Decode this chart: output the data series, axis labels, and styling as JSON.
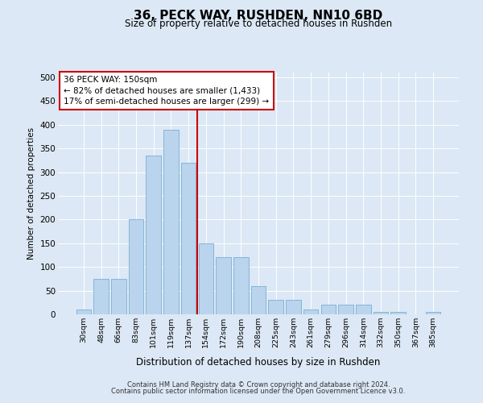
{
  "title": "36, PECK WAY, RUSHDEN, NN10 6BD",
  "subtitle": "Size of property relative to detached houses in Rushden",
  "xlabel": "Distribution of detached houses by size in Rushden",
  "ylabel": "Number of detached properties",
  "categories": [
    "30sqm",
    "48sqm",
    "66sqm",
    "83sqm",
    "101sqm",
    "119sqm",
    "137sqm",
    "154sqm",
    "172sqm",
    "190sqm",
    "208sqm",
    "225sqm",
    "243sqm",
    "261sqm",
    "279sqm",
    "296sqm",
    "314sqm",
    "332sqm",
    "350sqm",
    "367sqm",
    "385sqm"
  ],
  "values": [
    10,
    75,
    75,
    200,
    335,
    390,
    320,
    150,
    120,
    120,
    60,
    30,
    30,
    10,
    20,
    20,
    20,
    5,
    5,
    0,
    5
  ],
  "bar_color": "#bad4ed",
  "bar_edge_color": "#7aafd4",
  "vline_color": "#cc0000",
  "annotation_text": "36 PECK WAY: 150sqm\n← 82% of detached houses are smaller (1,433)\n17% of semi-detached houses are larger (299) →",
  "annotation_box_facecolor": "#ffffff",
  "annotation_box_edge": "#cc0000",
  "bg_color": "#dce8f5",
  "plot_bg_color": "#dce8f5",
  "footer1": "Contains HM Land Registry data © Crown copyright and database right 2024.",
  "footer2": "Contains public sector information licensed under the Open Government Licence v3.0.",
  "ylim": [
    0,
    510
  ],
  "yticks": [
    0,
    50,
    100,
    150,
    200,
    250,
    300,
    350,
    400,
    450,
    500
  ],
  "grid_color": "#ffffff",
  "vline_index": 7
}
